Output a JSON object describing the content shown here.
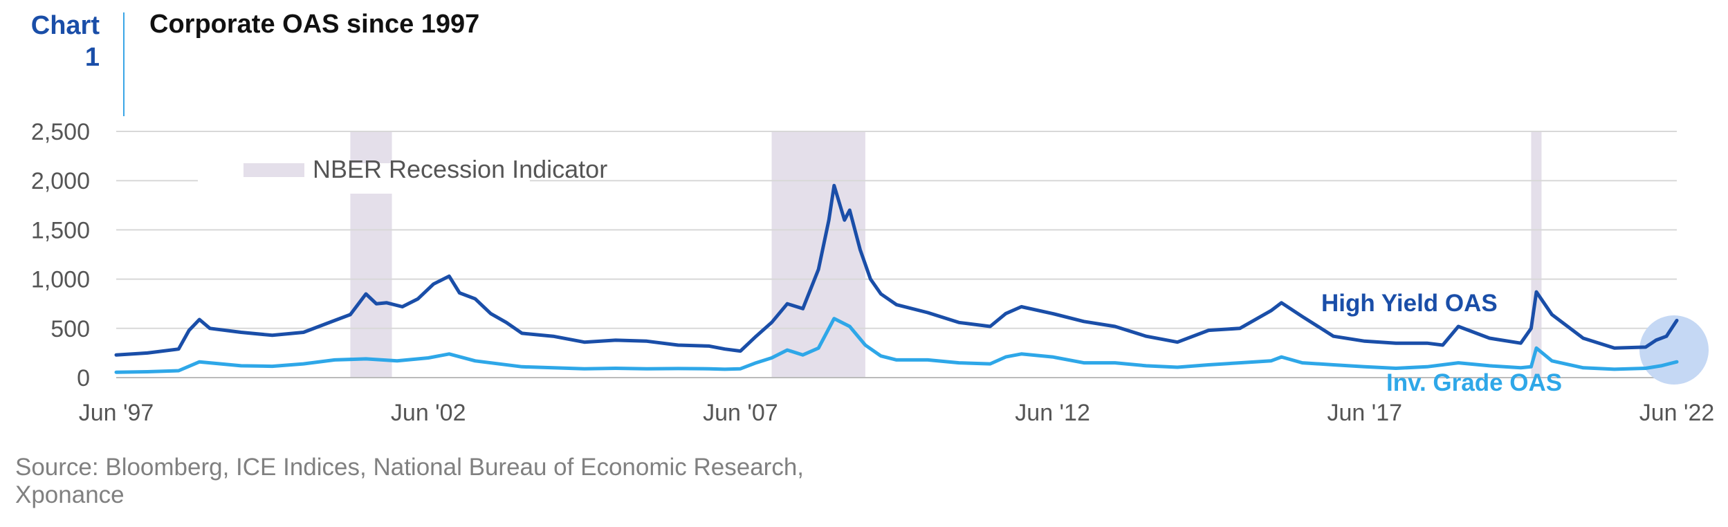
{
  "header": {
    "tag": "Chart 1",
    "title": "Corporate OAS since 1997"
  },
  "source": "Source: Bloomberg, ICE Indices, National Bureau of Economic Research, Xponance",
  "colors": {
    "high_yield": "#1a4ea8",
    "inv_grade": "#2ea7e8",
    "recession": "#e4dfea",
    "grid": "#d8d8d8",
    "highlight": "#c5d8f4"
  },
  "chart_data": {
    "type": "line",
    "title": "Corporate OAS since 1997",
    "xlabel": "",
    "ylabel": "",
    "x_range": [
      "1997-06",
      "2022-06"
    ],
    "x_ticks": [
      "Jun '97",
      "Jun '02",
      "Jun '07",
      "Jun '12",
      "Jun '17",
      "Jun '22"
    ],
    "ylim": [
      0,
      2500
    ],
    "y_ticks": [
      "0",
      "500",
      "1,000",
      "1,500",
      "2,000",
      "2,500"
    ],
    "y_tick_values": [
      0,
      500,
      1000,
      1500,
      2000,
      2500
    ],
    "grid": true,
    "legend": {
      "label": "NBER Recession Indicator",
      "position": "top-left"
    },
    "recessions": [
      {
        "start": "2001-03",
        "end": "2001-11"
      },
      {
        "start": "2007-12",
        "end": "2009-06"
      },
      {
        "start": "2020-02",
        "end": "2020-04"
      }
    ],
    "series": [
      {
        "name": "High Yield OAS",
        "points": [
          [
            "1997-06",
            230
          ],
          [
            "1997-12",
            250
          ],
          [
            "1998-06",
            290
          ],
          [
            "1998-08",
            480
          ],
          [
            "1998-10",
            590
          ],
          [
            "1998-12",
            500
          ],
          [
            "1999-06",
            460
          ],
          [
            "1999-12",
            430
          ],
          [
            "2000-06",
            460
          ],
          [
            "2000-12",
            580
          ],
          [
            "2001-03",
            640
          ],
          [
            "2001-06",
            850
          ],
          [
            "2001-08",
            750
          ],
          [
            "2001-10",
            760
          ],
          [
            "2002-01",
            720
          ],
          [
            "2002-04",
            800
          ],
          [
            "2002-07",
            950
          ],
          [
            "2002-10",
            1030
          ],
          [
            "2002-12",
            860
          ],
          [
            "2003-03",
            800
          ],
          [
            "2003-06",
            650
          ],
          [
            "2003-09",
            560
          ],
          [
            "2003-12",
            450
          ],
          [
            "2004-06",
            420
          ],
          [
            "2004-12",
            360
          ],
          [
            "2005-06",
            380
          ],
          [
            "2005-12",
            370
          ],
          [
            "2006-06",
            330
          ],
          [
            "2006-12",
            320
          ],
          [
            "2007-03",
            290
          ],
          [
            "2007-06",
            270
          ],
          [
            "2007-09",
            420
          ],
          [
            "2007-12",
            560
          ],
          [
            "2008-03",
            750
          ],
          [
            "2008-06",
            700
          ],
          [
            "2008-09",
            1100
          ],
          [
            "2008-11",
            1600
          ],
          [
            "2008-12",
            1950
          ],
          [
            "2009-02",
            1600
          ],
          [
            "2009-03",
            1700
          ],
          [
            "2009-05",
            1300
          ],
          [
            "2009-07",
            1000
          ],
          [
            "2009-09",
            850
          ],
          [
            "2009-12",
            740
          ],
          [
            "2010-06",
            660
          ],
          [
            "2010-12",
            560
          ],
          [
            "2011-06",
            520
          ],
          [
            "2011-09",
            650
          ],
          [
            "2011-12",
            720
          ],
          [
            "2012-06",
            650
          ],
          [
            "2012-12",
            570
          ],
          [
            "2013-06",
            520
          ],
          [
            "2013-12",
            420
          ],
          [
            "2014-06",
            360
          ],
          [
            "2014-12",
            480
          ],
          [
            "2015-06",
            500
          ],
          [
            "2015-12",
            680
          ],
          [
            "2016-02",
            760
          ],
          [
            "2016-06",
            620
          ],
          [
            "2016-12",
            420
          ],
          [
            "2017-06",
            370
          ],
          [
            "2017-12",
            350
          ],
          [
            "2018-06",
            350
          ],
          [
            "2018-09",
            330
          ],
          [
            "2018-12",
            520
          ],
          [
            "2019-06",
            400
          ],
          [
            "2019-12",
            350
          ],
          [
            "2020-02",
            500
          ],
          [
            "2020-03",
            870
          ],
          [
            "2020-06",
            640
          ],
          [
            "2020-12",
            400
          ],
          [
            "2021-06",
            300
          ],
          [
            "2021-12",
            310
          ],
          [
            "2022-02",
            380
          ],
          [
            "2022-04",
            420
          ],
          [
            "2022-06",
            580
          ]
        ]
      },
      {
        "name": "Inv. Grade OAS",
        "points": [
          [
            "1997-06",
            55
          ],
          [
            "1997-12",
            60
          ],
          [
            "1998-06",
            70
          ],
          [
            "1998-10",
            160
          ],
          [
            "1999-06",
            120
          ],
          [
            "1999-12",
            115
          ],
          [
            "2000-06",
            140
          ],
          [
            "2000-12",
            180
          ],
          [
            "2001-06",
            190
          ],
          [
            "2001-12",
            170
          ],
          [
            "2002-06",
            200
          ],
          [
            "2002-10",
            240
          ],
          [
            "2003-03",
            170
          ],
          [
            "2003-12",
            110
          ],
          [
            "2004-06",
            100
          ],
          [
            "2004-12",
            90
          ],
          [
            "2005-06",
            95
          ],
          [
            "2005-12",
            90
          ],
          [
            "2006-06",
            92
          ],
          [
            "2006-12",
            90
          ],
          [
            "2007-03",
            85
          ],
          [
            "2007-06",
            90
          ],
          [
            "2007-09",
            150
          ],
          [
            "2007-12",
            200
          ],
          [
            "2008-03",
            280
          ],
          [
            "2008-06",
            230
          ],
          [
            "2008-09",
            300
          ],
          [
            "2008-12",
            600
          ],
          [
            "2009-03",
            520
          ],
          [
            "2009-06",
            330
          ],
          [
            "2009-09",
            220
          ],
          [
            "2009-12",
            180
          ],
          [
            "2010-06",
            180
          ],
          [
            "2010-12",
            150
          ],
          [
            "2011-06",
            140
          ],
          [
            "2011-09",
            210
          ],
          [
            "2011-12",
            240
          ],
          [
            "2012-06",
            210
          ],
          [
            "2012-12",
            150
          ],
          [
            "2013-06",
            150
          ],
          [
            "2013-12",
            120
          ],
          [
            "2014-06",
            105
          ],
          [
            "2014-12",
            130
          ],
          [
            "2015-06",
            150
          ],
          [
            "2015-12",
            170
          ],
          [
            "2016-02",
            210
          ],
          [
            "2016-06",
            150
          ],
          [
            "2016-12",
            130
          ],
          [
            "2017-06",
            110
          ],
          [
            "2017-12",
            95
          ],
          [
            "2018-06",
            110
          ],
          [
            "2018-12",
            150
          ],
          [
            "2019-06",
            120
          ],
          [
            "2019-12",
            100
          ],
          [
            "2020-02",
            110
          ],
          [
            "2020-03",
            300
          ],
          [
            "2020-06",
            170
          ],
          [
            "2020-12",
            100
          ],
          [
            "2021-06",
            85
          ],
          [
            "2021-12",
            95
          ],
          [
            "2022-03",
            120
          ],
          [
            "2022-06",
            160
          ]
        ]
      }
    ]
  }
}
